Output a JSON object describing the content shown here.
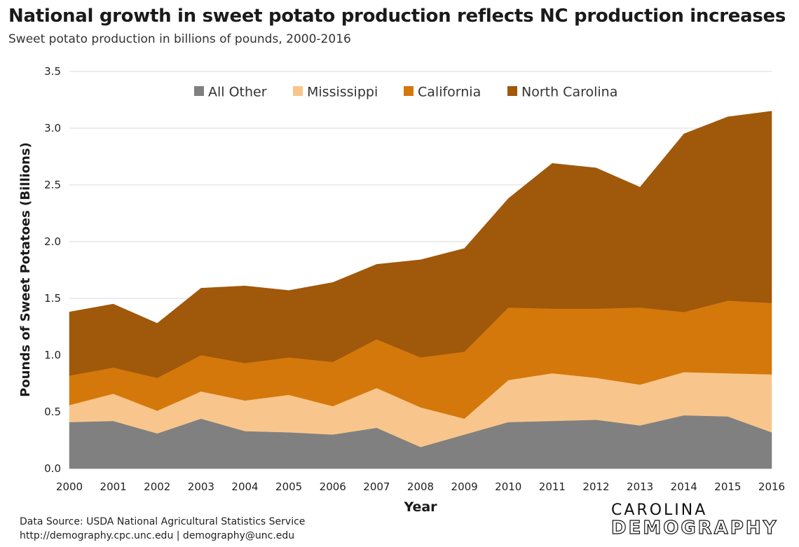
{
  "chart_data": {
    "type": "area",
    "stacked": true,
    "title": "National growth in sweet potato production reflects NC production increases",
    "subtitle": "Sweet potato production in billions of pounds, 2000-2016",
    "xlabel": "Year",
    "ylabel": "Pounds of Sweet Potatoes (Billions)",
    "ylim": [
      0,
      3.5
    ],
    "yticks": [
      "0.0",
      "0.5",
      "1.0",
      "1.5",
      "2.0",
      "2.5",
      "3.0",
      "3.5"
    ],
    "grid": true,
    "legend_position": "top",
    "categories": [
      "2000",
      "2001",
      "2002",
      "2003",
      "2004",
      "2005",
      "2006",
      "2007",
      "2008",
      "2009",
      "2010",
      "2011",
      "2012",
      "2013",
      "2014",
      "2015",
      "2016"
    ],
    "series": [
      {
        "name": "All Other",
        "color": "#808080",
        "values": [
          0.41,
          0.42,
          0.31,
          0.44,
          0.33,
          0.32,
          0.3,
          0.36,
          0.19,
          0.3,
          0.41,
          0.42,
          0.43,
          0.38,
          0.47,
          0.46,
          0.32
        ]
      },
      {
        "name": "Mississippi",
        "color": "#F8C68C",
        "values": [
          0.15,
          0.24,
          0.2,
          0.24,
          0.27,
          0.33,
          0.25,
          0.35,
          0.35,
          0.14,
          0.37,
          0.42,
          0.37,
          0.36,
          0.38,
          0.38,
          0.51
        ]
      },
      {
        "name": "California",
        "color": "#D4780B",
        "values": [
          0.26,
          0.23,
          0.29,
          0.32,
          0.33,
          0.33,
          0.39,
          0.43,
          0.44,
          0.59,
          0.64,
          0.57,
          0.61,
          0.68,
          0.53,
          0.64,
          0.63
        ]
      },
      {
        "name": "North Carolina",
        "color": "#A0580A",
        "values": [
          0.56,
          0.56,
          0.48,
          0.59,
          0.68,
          0.59,
          0.7,
          0.66,
          0.86,
          0.91,
          0.96,
          1.28,
          1.24,
          1.06,
          1.57,
          1.62,
          1.69
        ]
      }
    ]
  },
  "footer": {
    "source_line": "Data Source: USDA National Agricultural Statistics Service",
    "contact_line": "http://demography.cpc.unc.edu  |  demography@unc.edu"
  },
  "logo": {
    "line1": "CAROLINA",
    "line2": "DEMOGRAPHY"
  }
}
